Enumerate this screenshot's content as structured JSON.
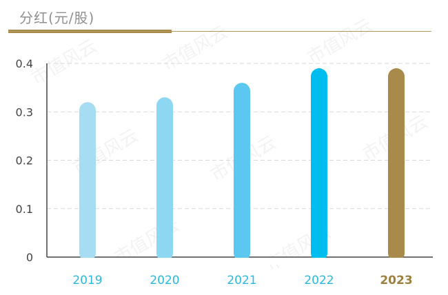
{
  "chart_data": {
    "type": "bar",
    "title": "分红(元/股)",
    "categories": [
      "2019",
      "2020",
      "2021",
      "2022",
      "2023"
    ],
    "values": [
      0.32,
      0.33,
      0.36,
      0.39,
      0.39
    ],
    "ylim": [
      0,
      0.4
    ],
    "yticks": [
      "0",
      "0.1",
      "0.2",
      "0.3",
      "0.4"
    ],
    "colors": [
      "#a6ddf3",
      "#8ed7f3",
      "#5cc8ef",
      "#00bdf0",
      "#a88b4a"
    ],
    "label_colors": [
      "#29b7e3",
      "#29b7e3",
      "#29b7e3",
      "#29b7e3",
      "#9d7f3f"
    ],
    "grid": true
  },
  "watermark": "市值风云"
}
